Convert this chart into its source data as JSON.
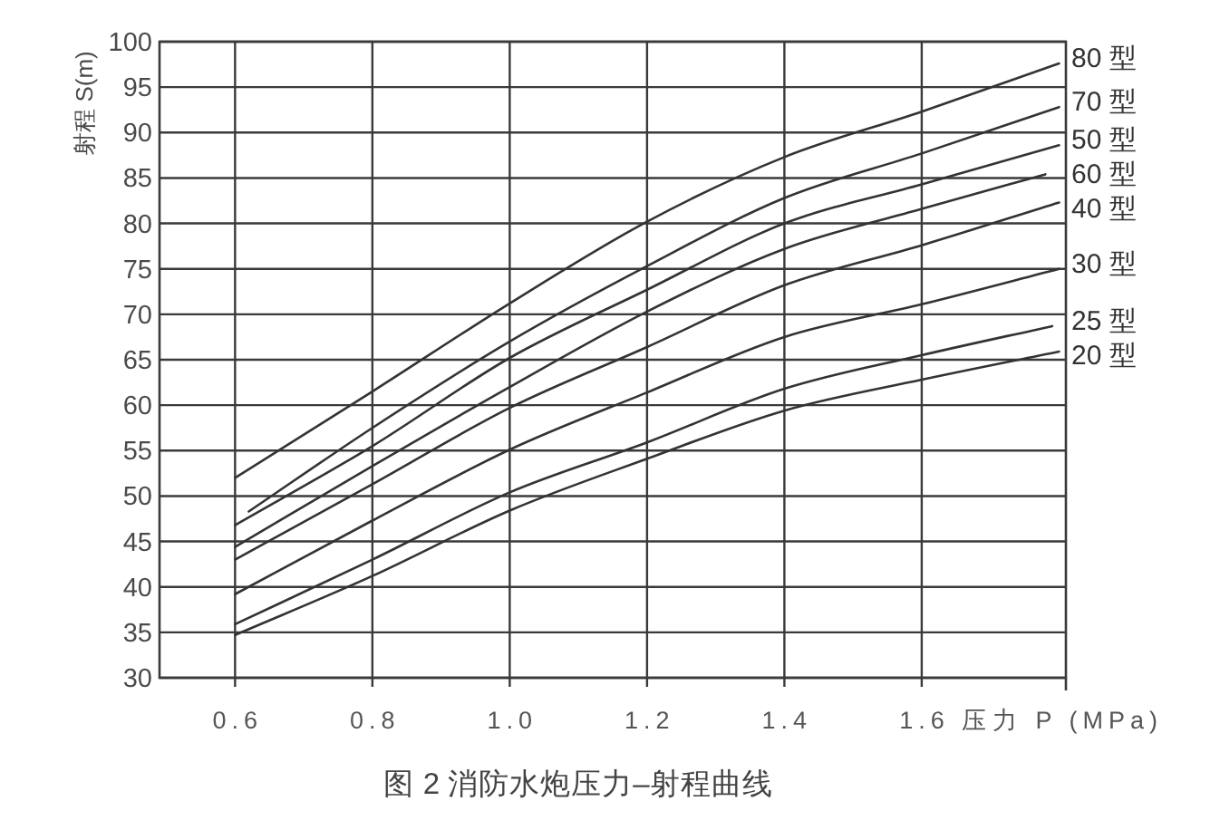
{
  "chart_data": {
    "type": "line",
    "title": "图 2 消防水炮压力–射程曲线",
    "xlabel": "压力 P (MPa)",
    "ylabel": "射程 S(m)",
    "xlim": [
      0.49,
      1.81
    ],
    "ylim": [
      30,
      100
    ],
    "xticks": [
      0.6,
      0.8,
      {
        "value": 1,
        "label": "1.0"
      },
      1.2,
      1.4,
      1.6
    ],
    "yticks": [
      30,
      35,
      40,
      45,
      50,
      55,
      60,
      65,
      70,
      75,
      80,
      85,
      90,
      95,
      100
    ],
    "grid": true,
    "line_style": "solid",
    "series": [
      {
        "name": "80 型",
        "color": "#333333",
        "x": [
          0.6,
          0.8,
          1.0,
          1.2,
          1.4,
          1.6,
          1.8
        ],
        "values": [
          52,
          61.5,
          71.2,
          80.2,
          87.3,
          92.3,
          97.6
        ]
      },
      {
        "name": "70 型",
        "color": "#333333",
        "x": [
          0.62,
          0.8,
          1.0,
          1.2,
          1.4,
          1.6,
          1.8
        ],
        "values": [
          48.3,
          57.5,
          67,
          75.3,
          82.8,
          87.7,
          92.8
        ]
      },
      {
        "name": "50 型",
        "color": "#333333",
        "x": [
          0.6,
          0.8,
          1.0,
          1.2,
          1.4,
          1.6,
          1.8
        ],
        "values": [
          46.8,
          55.5,
          65.2,
          72.7,
          80,
          84.3,
          88.6
        ]
      },
      {
        "name": "60 型",
        "color": "#333333",
        "x": [
          0.6,
          0.8,
          1.0,
          1.2,
          1.4,
          1.6,
          1.78
        ],
        "values": [
          44.4,
          53.3,
          62,
          70.3,
          77.2,
          81.6,
          85.4
        ]
      },
      {
        "name": "40 型",
        "color": "#333333",
        "x": [
          0.6,
          0.8,
          1.0,
          1.2,
          1.4,
          1.6,
          1.8
        ],
        "values": [
          43,
          51.3,
          59.7,
          66.4,
          73.2,
          77.6,
          82.3
        ]
      },
      {
        "name": "30 型",
        "color": "#333333",
        "x": [
          0.6,
          0.8,
          1.0,
          1.2,
          1.4,
          1.6,
          1.8
        ],
        "values": [
          39.2,
          47.3,
          55.1,
          61.4,
          67.5,
          71.1,
          75
        ]
      },
      {
        "name": "25 型",
        "color": "#333333",
        "x": [
          0.6,
          0.8,
          1.0,
          1.2,
          1.4,
          1.6,
          1.79
        ],
        "values": [
          35.9,
          43,
          50.4,
          55.9,
          61.8,
          65.5,
          68.7
        ]
      },
      {
        "name": "20 型",
        "color": "#333333",
        "x": [
          0.6,
          0.8,
          1.0,
          1.2,
          1.4,
          1.6,
          1.8
        ],
        "values": [
          34.7,
          41.2,
          48.4,
          54.1,
          59.4,
          62.8,
          65.9
        ]
      }
    ]
  }
}
